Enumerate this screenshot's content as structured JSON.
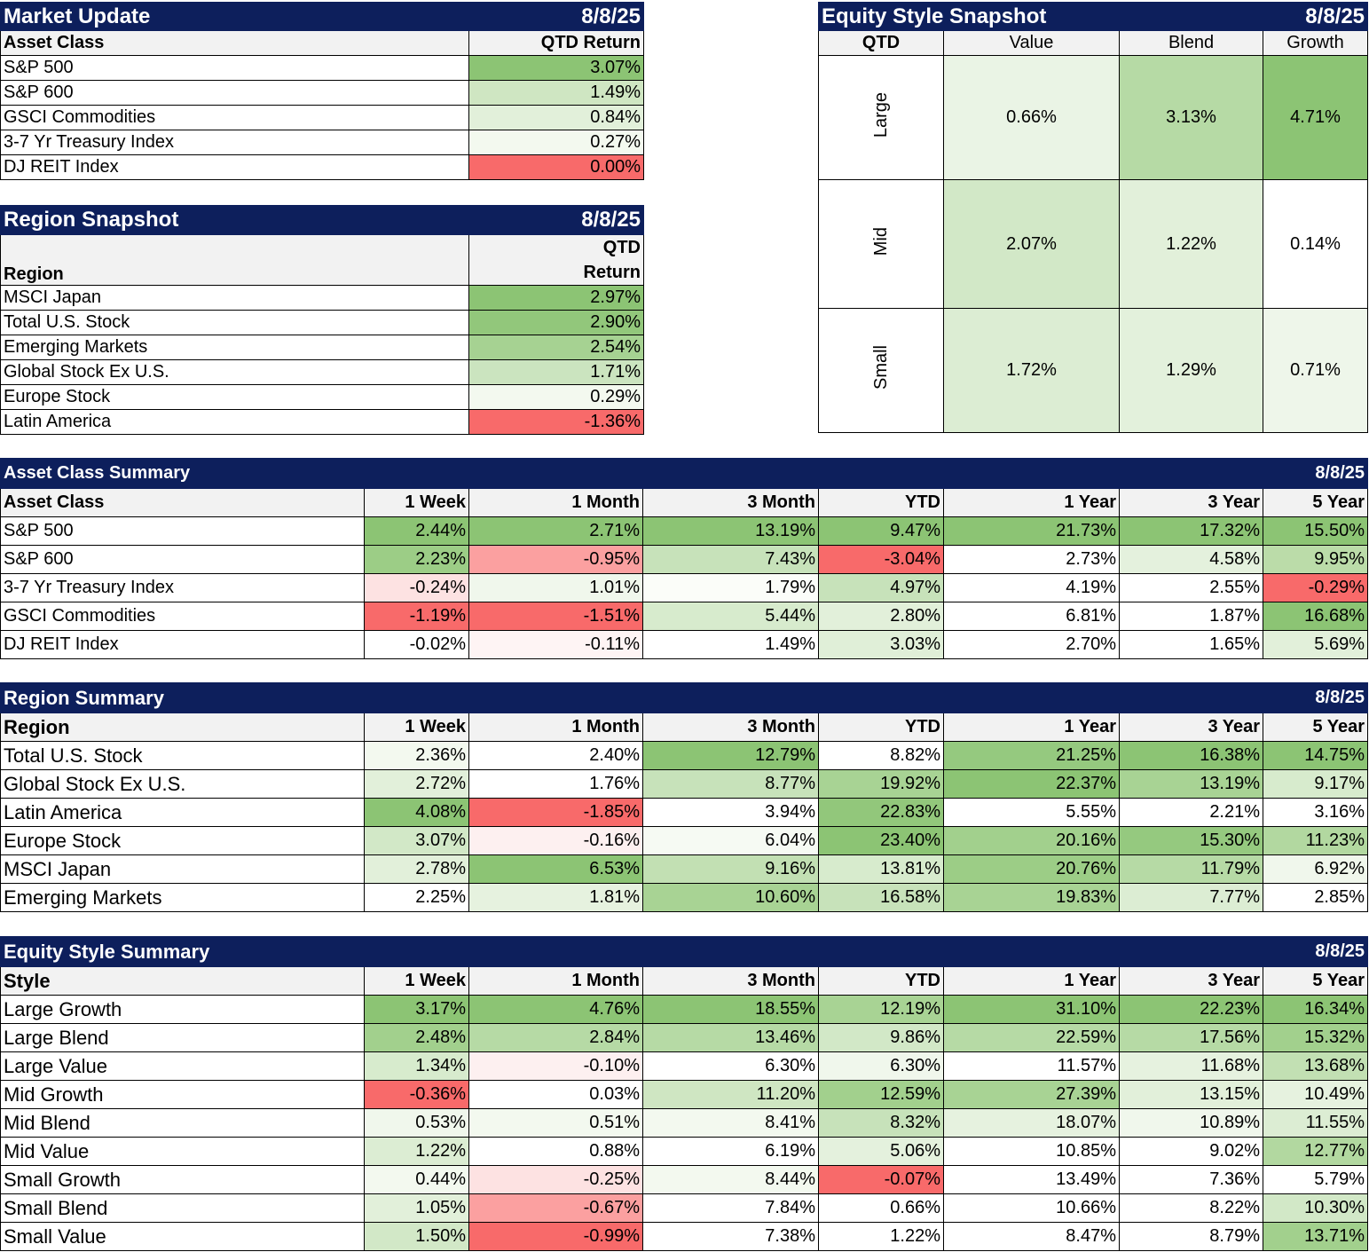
{
  "market_update": {
    "title": "Market Update",
    "date": "8/8/25",
    "col_label": "Asset Class",
    "col_value": "QTD Return",
    "rows": [
      {
        "name": "S&P 500",
        "value": "3.07%",
        "color": "#8cc474"
      },
      {
        "name": "S&P 600",
        "value": "1.49%",
        "color": "#cfe6c2"
      },
      {
        "name": "GSCI Commodities",
        "value": "0.84%",
        "color": "#e2f0da"
      },
      {
        "name": "3-7 Yr Treasury Index",
        "value": "0.27%",
        "color": "#f3f9ef"
      },
      {
        "name": "DJ REIT Index",
        "value": "0.00%",
        "color": "#f86a6a"
      }
    ]
  },
  "region_snapshot": {
    "title": "Region Snapshot",
    "date": "8/8/25",
    "col_label": "Region",
    "col_value_1": "QTD",
    "col_value_2": "Return",
    "rows": [
      {
        "name": "MSCI Japan",
        "value": "2.97%",
        "color": "#8cc474"
      },
      {
        "name": "Total U.S. Stock",
        "value": "2.90%",
        "color": "#92c77b"
      },
      {
        "name": "Emerging Markets",
        "value": "2.54%",
        "color": "#a6d292"
      },
      {
        "name": "Global Stock Ex U.S.",
        "value": "1.71%",
        "color": "#cbe4bf"
      },
      {
        "name": "Europe Stock",
        "value": "0.29%",
        "color": "#f3f9ef"
      },
      {
        "name": "Latin America",
        "value": "-1.36%",
        "color": "#f86a6a"
      }
    ]
  },
  "equity_snapshot": {
    "title": "Equity Style Snapshot",
    "date": "8/8/25",
    "corner": "QTD",
    "columns": [
      "Value",
      "Blend",
      "Growth"
    ],
    "rows": [
      {
        "label": "Large",
        "cells": [
          {
            "value": "0.66%",
            "color": "#eaf4e5"
          },
          {
            "value": "3.13%",
            "color": "#b6daa5"
          },
          {
            "value": "4.71%",
            "color": "#8cc474"
          }
        ]
      },
      {
        "label": "Mid",
        "cells": [
          {
            "value": "2.07%",
            "color": "#d2e8c7"
          },
          {
            "value": "1.22%",
            "color": "#e2f0da"
          },
          {
            "value": "0.14%",
            "color": "#ffffff"
          }
        ]
      },
      {
        "label": "Small",
        "cells": [
          {
            "value": "1.72%",
            "color": "#dcedd3"
          },
          {
            "value": "1.29%",
            "color": "#e3f1dc"
          },
          {
            "value": "0.71%",
            "color": "#eef6ea"
          }
        ]
      }
    ]
  },
  "asset_summary": {
    "title": "Asset Class Summary",
    "date": "8/8/25",
    "headers": [
      "Asset Class",
      "1 Week",
      "1 Month",
      "3 Month",
      "YTD",
      "1 Year",
      "3 Year",
      "5 Year"
    ],
    "rows": [
      {
        "name": "S&P 500",
        "cells": [
          {
            "v": "2.44%",
            "c": "#8cc474"
          },
          {
            "v": "2.71%",
            "c": "#8cc474"
          },
          {
            "v": "13.19%",
            "c": "#8cc474"
          },
          {
            "v": "9.47%",
            "c": "#8cc474"
          },
          {
            "v": "21.73%",
            "c": "#8cc474"
          },
          {
            "v": "17.32%",
            "c": "#8cc474"
          },
          {
            "v": "15.50%",
            "c": "#8cc474"
          }
        ]
      },
      {
        "name": "S&P 600",
        "cells": [
          {
            "v": "2.23%",
            "c": "#9ccd86"
          },
          {
            "v": "-0.95%",
            "c": "#fba0a0"
          },
          {
            "v": "7.43%",
            "c": "#c7e2ba"
          },
          {
            "v": "-3.04%",
            "c": "#f86a6a"
          },
          {
            "v": "2.73%",
            "c": "#ffffff"
          },
          {
            "v": "4.58%",
            "c": "#e4f1dd"
          },
          {
            "v": "9.95%",
            "c": "#bbdca9"
          }
        ]
      },
      {
        "name": "3-7 Yr Treasury Index",
        "cells": [
          {
            "v": "-0.24%",
            "c": "#fde2e2"
          },
          {
            "v": "1.01%",
            "c": "#f0f7ec"
          },
          {
            "v": "1.79%",
            "c": "#fbfdf9"
          },
          {
            "v": "4.97%",
            "c": "#c7e2ba"
          },
          {
            "v": "4.19%",
            "c": "#ffffff"
          },
          {
            "v": "2.55%",
            "c": "#ffffff"
          },
          {
            "v": "-0.29%",
            "c": "#f86a6a"
          }
        ]
      },
      {
        "name": "GSCI Commodities",
        "cells": [
          {
            "v": "-1.19%",
            "c": "#f86a6a"
          },
          {
            "v": "-1.51%",
            "c": "#f86a6a"
          },
          {
            "v": "5.44%",
            "c": "#d7ebcd"
          },
          {
            "v": "2.80%",
            "c": "#e2f0da"
          },
          {
            "v": "6.81%",
            "c": "#ffffff"
          },
          {
            "v": "1.87%",
            "c": "#ffffff"
          },
          {
            "v": "16.68%",
            "c": "#8cc474"
          }
        ]
      },
      {
        "name": "DJ REIT Index",
        "cells": [
          {
            "v": "-0.02%",
            "c": "#ffffff"
          },
          {
            "v": "-0.11%",
            "c": "#fef4f4"
          },
          {
            "v": "1.49%",
            "c": "#ffffff"
          },
          {
            "v": "3.03%",
            "c": "#e0efd8"
          },
          {
            "v": "2.70%",
            "c": "#ffffff"
          },
          {
            "v": "1.65%",
            "c": "#ffffff"
          },
          {
            "v": "5.69%",
            "c": "#e2f0da"
          }
        ]
      }
    ]
  },
  "region_summary": {
    "title": "Region Summary",
    "date": "8/8/25",
    "headers": [
      "Region",
      "1 Week",
      "1 Month",
      "3 Month",
      "YTD",
      "1 Year",
      "3 Year",
      "5 Year"
    ],
    "rows": [
      {
        "name": "Total U.S. Stock",
        "cells": [
          {
            "v": "2.36%",
            "c": "#f3f9ef"
          },
          {
            "v": "2.40%",
            "c": "#ffffff"
          },
          {
            "v": "12.79%",
            "c": "#8cc474"
          },
          {
            "v": "8.82%",
            "c": "#ffffff"
          },
          {
            "v": "21.25%",
            "c": "#95c97f"
          },
          {
            "v": "16.38%",
            "c": "#8cc474"
          },
          {
            "v": "14.75%",
            "c": "#8cc474"
          }
        ]
      },
      {
        "name": "Global Stock Ex U.S.",
        "cells": [
          {
            "v": "2.72%",
            "c": "#e2f0da"
          },
          {
            "v": "1.76%",
            "c": "#ffffff"
          },
          {
            "v": "8.77%",
            "c": "#c7e2ba"
          },
          {
            "v": "19.92%",
            "c": "#a8d394"
          },
          {
            "v": "22.37%",
            "c": "#8cc474"
          },
          {
            "v": "13.19%",
            "c": "#a8d394"
          },
          {
            "v": "9.17%",
            "c": "#d7ebcd"
          }
        ]
      },
      {
        "name": "Latin America",
        "cells": [
          {
            "v": "4.08%",
            "c": "#8cc474"
          },
          {
            "v": "-1.85%",
            "c": "#f86a6a"
          },
          {
            "v": "3.94%",
            "c": "#ffffff"
          },
          {
            "v": "22.83%",
            "c": "#92c77b"
          },
          {
            "v": "5.55%",
            "c": "#ffffff"
          },
          {
            "v": "2.21%",
            "c": "#ffffff"
          },
          {
            "v": "3.16%",
            "c": "#ffffff"
          }
        ]
      },
      {
        "name": "Europe Stock",
        "cells": [
          {
            "v": "3.07%",
            "c": "#d2e8c7"
          },
          {
            "v": "-0.16%",
            "c": "#fdf0f0"
          },
          {
            "v": "6.04%",
            "c": "#f6faf3"
          },
          {
            "v": "23.40%",
            "c": "#8cc474"
          },
          {
            "v": "20.16%",
            "c": "#a2d08d"
          },
          {
            "v": "15.30%",
            "c": "#95c97f"
          },
          {
            "v": "11.23%",
            "c": "#b2d8a0"
          }
        ]
      },
      {
        "name": "MSCI Japan",
        "cells": [
          {
            "v": "2.78%",
            "c": "#e2f0da"
          },
          {
            "v": "6.53%",
            "c": "#8cc474"
          },
          {
            "v": "9.16%",
            "c": "#c2e0b3"
          },
          {
            "v": "13.81%",
            "c": "#d7ebcd"
          },
          {
            "v": "20.76%",
            "c": "#9ccd86"
          },
          {
            "v": "11.79%",
            "c": "#b6daa5"
          },
          {
            "v": "6.92%",
            "c": "#f0f7ec"
          }
        ]
      },
      {
        "name": "Emerging Markets",
        "cells": [
          {
            "v": "2.25%",
            "c": "#ffffff"
          },
          {
            "v": "1.81%",
            "c": "#e6f2df"
          },
          {
            "v": "10.60%",
            "c": "#a8d394"
          },
          {
            "v": "16.58%",
            "c": "#c7e2ba"
          },
          {
            "v": "19.83%",
            "c": "#a8d394"
          },
          {
            "v": "7.77%",
            "c": "#dcedd3"
          },
          {
            "v": "2.85%",
            "c": "#ffffff"
          }
        ]
      }
    ]
  },
  "equity_summary": {
    "title": "Equity Style Summary",
    "date": "8/8/25",
    "headers": [
      "Style",
      "1 Week",
      "1 Month",
      "3 Month",
      "YTD",
      "1 Year",
      "3 Year",
      "5 Year"
    ],
    "rows": [
      {
        "name": "Large Growth",
        "cells": [
          {
            "v": "3.17%",
            "c": "#8cc474"
          },
          {
            "v": "4.76%",
            "c": "#8cc474"
          },
          {
            "v": "18.55%",
            "c": "#8cc474"
          },
          {
            "v": "12.19%",
            "c": "#a8d394"
          },
          {
            "v": "31.10%",
            "c": "#8cc474"
          },
          {
            "v": "22.23%",
            "c": "#8cc474"
          },
          {
            "v": "16.34%",
            "c": "#8cc474"
          }
        ]
      },
      {
        "name": "Large Blend",
        "cells": [
          {
            "v": "2.48%",
            "c": "#a2d08d"
          },
          {
            "v": "2.84%",
            "c": "#b6daa5"
          },
          {
            "v": "13.46%",
            "c": "#b6daa5"
          },
          {
            "v": "9.86%",
            "c": "#d2e8c7"
          },
          {
            "v": "22.59%",
            "c": "#b6daa5"
          },
          {
            "v": "17.56%",
            "c": "#b6daa5"
          },
          {
            "v": "15.32%",
            "c": "#a2d08d"
          }
        ]
      },
      {
        "name": "Large Value",
        "cells": [
          {
            "v": "1.34%",
            "c": "#d7ebcd"
          },
          {
            "v": "-0.10%",
            "c": "#fdf0f0"
          },
          {
            "v": "6.30%",
            "c": "#ffffff"
          },
          {
            "v": "6.30%",
            "c": "#f0f7ec"
          },
          {
            "v": "11.57%",
            "c": "#ffffff"
          },
          {
            "v": "11.68%",
            "c": "#e6f2df"
          },
          {
            "v": "13.68%",
            "c": "#c2e0b3"
          }
        ]
      },
      {
        "name": "Mid Growth",
        "cells": [
          {
            "v": "-0.36%",
            "c": "#f86a6a"
          },
          {
            "v": "0.03%",
            "c": "#ffffff"
          },
          {
            "v": "11.20%",
            "c": "#cfe6c2"
          },
          {
            "v": "12.59%",
            "c": "#a2d08d"
          },
          {
            "v": "27.39%",
            "c": "#a8d394"
          },
          {
            "v": "13.15%",
            "c": "#e2f0da"
          },
          {
            "v": "10.49%",
            "c": "#e6f2df"
          }
        ]
      },
      {
        "name": "Mid Blend",
        "cells": [
          {
            "v": "0.53%",
            "c": "#f0f7ec"
          },
          {
            "v": "0.51%",
            "c": "#f3f9ef"
          },
          {
            "v": "8.41%",
            "c": "#f3f9ef"
          },
          {
            "v": "8.32%",
            "c": "#c7e2ba"
          },
          {
            "v": "18.07%",
            "c": "#e6f2df"
          },
          {
            "v": "10.89%",
            "c": "#f0f7ec"
          },
          {
            "v": "11.55%",
            "c": "#dcedd3"
          }
        ]
      },
      {
        "name": "Mid Value",
        "cells": [
          {
            "v": "1.22%",
            "c": "#dcedd3"
          },
          {
            "v": "0.88%",
            "c": "#ffffff"
          },
          {
            "v": "6.19%",
            "c": "#ffffff"
          },
          {
            "v": "5.06%",
            "c": "#e4f1dd"
          },
          {
            "v": "10.85%",
            "c": "#ffffff"
          },
          {
            "v": "9.02%",
            "c": "#ffffff"
          },
          {
            "v": "12.77%",
            "c": "#b2d8a0"
          }
        ]
      },
      {
        "name": "Small Growth",
        "cells": [
          {
            "v": "0.44%",
            "c": "#f3f9ef"
          },
          {
            "v": "-0.25%",
            "c": "#fde2e2"
          },
          {
            "v": "8.44%",
            "c": "#f3f9ef"
          },
          {
            "v": "-0.07%",
            "c": "#f86a6a"
          },
          {
            "v": "13.49%",
            "c": "#ffffff"
          },
          {
            "v": "7.36%",
            "c": "#ffffff"
          },
          {
            "v": "5.79%",
            "c": "#ffffff"
          }
        ]
      },
      {
        "name": "Small Blend",
        "cells": [
          {
            "v": "1.05%",
            "c": "#e2f0da"
          },
          {
            "v": "-0.67%",
            "c": "#fba0a0"
          },
          {
            "v": "7.84%",
            "c": "#ffffff"
          },
          {
            "v": "0.66%",
            "c": "#ffffff"
          },
          {
            "v": "10.66%",
            "c": "#ffffff"
          },
          {
            "v": "8.22%",
            "c": "#ffffff"
          },
          {
            "v": "10.30%",
            "c": "#d2e8c7"
          }
        ]
      },
      {
        "name": "Small Value",
        "cells": [
          {
            "v": "1.50%",
            "c": "#d2e8c7"
          },
          {
            "v": "-0.99%",
            "c": "#f86a6a"
          },
          {
            "v": "7.38%",
            "c": "#ffffff"
          },
          {
            "v": "1.22%",
            "c": "#ffffff"
          },
          {
            "v": "8.47%",
            "c": "#ffffff"
          },
          {
            "v": "8.79%",
            "c": "#ffffff"
          },
          {
            "v": "13.71%",
            "c": "#a2d08d"
          }
        ]
      }
    ]
  }
}
